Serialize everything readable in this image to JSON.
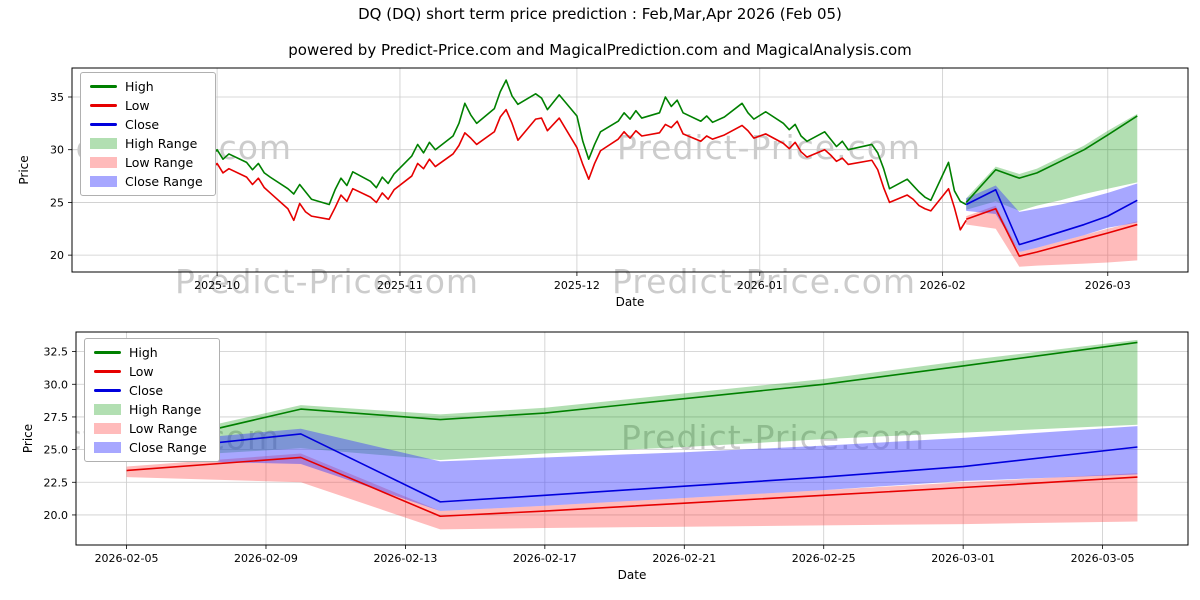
{
  "title": "DQ (DQ) short term price prediction : Feb,Mar,Apr 2026 (Feb 05)",
  "subtitle": "powered by Predict-Price.com and MagicalPrediction.com and MagicalAnalysis.com",
  "watermark": "Predict-Price.com",
  "chart_data": {
    "type": "line",
    "legend": [
      "High",
      "Low",
      "Close",
      "High Range",
      "Low Range",
      "Close Range"
    ],
    "colors": {
      "high": "#008000",
      "low": "#e60000",
      "close": "#0000dd",
      "high_range": "rgba(0,150,0,0.30)",
      "low_range": "rgba(255,60,60,0.35)",
      "close_range": "rgba(60,60,255,0.45)",
      "grid": "#cccccc",
      "axis": "#000000",
      "watermark": "#9a9a9a"
    },
    "figures": [
      {
        "name": "history-with-prediction",
        "xlabel": "Date",
        "ylabel": "Price",
        "ylim": [
          18.4,
          37.75
        ],
        "yticks": [
          20,
          25,
          30,
          35
        ],
        "ytick_labels": [
          "20",
          "25",
          "30",
          "35"
        ],
        "xticks": [
          {
            "date": "2025-10-01",
            "label": "2025-10"
          },
          {
            "date": "2025-11-01",
            "label": "2025-11"
          },
          {
            "date": "2025-12-01",
            "label": "2025-12"
          },
          {
            "date": "2026-01-01",
            "label": "2026-01"
          },
          {
            "date": "2026-02-01",
            "label": "2026-02"
          },
          {
            "date": "2026-03-01",
            "label": "2026-03"
          }
        ],
        "show_history": true
      },
      {
        "name": "prediction-zoom",
        "xlabel": "Date",
        "ylabel": "Price",
        "ylim": [
          17.7,
          34.0
        ],
        "yticks": [
          20.0,
          22.5,
          25.0,
          27.5,
          30.0,
          32.5
        ],
        "ytick_labels": [
          "20.0",
          "22.5",
          "25.0",
          "27.5",
          "30.0",
          "32.5"
        ],
        "xticks": [
          {
            "date": "2026-02-05",
            "label": "2026-02-05"
          },
          {
            "date": "2026-02-09",
            "label": "2026-02-09"
          },
          {
            "date": "2026-02-13",
            "label": "2026-02-13"
          },
          {
            "date": "2026-02-17",
            "label": "2026-02-17"
          },
          {
            "date": "2026-02-21",
            "label": "2026-02-21"
          },
          {
            "date": "2026-02-25",
            "label": "2026-02-25"
          },
          {
            "date": "2026-03-01",
            "label": "2026-03-01"
          },
          {
            "date": "2026-03-05",
            "label": "2026-03-05"
          }
        ],
        "show_history": false
      }
    ],
    "history": {
      "dates": [
        "2025-09-15",
        "2025-09-16",
        "2025-09-17",
        "2025-09-18",
        "2025-09-19",
        "2025-09-22",
        "2025-09-23",
        "2025-09-24",
        "2025-09-25",
        "2025-09-26",
        "2025-09-29",
        "2025-09-30",
        "2025-10-01",
        "2025-10-02",
        "2025-10-03",
        "2025-10-06",
        "2025-10-07",
        "2025-10-08",
        "2025-10-09",
        "2025-10-10",
        "2025-10-13",
        "2025-10-14",
        "2025-10-15",
        "2025-10-16",
        "2025-10-17",
        "2025-10-20",
        "2025-10-21",
        "2025-10-22",
        "2025-10-23",
        "2025-10-24",
        "2025-10-27",
        "2025-10-28",
        "2025-10-29",
        "2025-10-30",
        "2025-10-31",
        "2025-11-03",
        "2025-11-04",
        "2025-11-05",
        "2025-11-06",
        "2025-11-07",
        "2025-11-10",
        "2025-11-11",
        "2025-11-12",
        "2025-11-13",
        "2025-11-14",
        "2025-11-17",
        "2025-11-18",
        "2025-11-19",
        "2025-11-20",
        "2025-11-21",
        "2025-11-24",
        "2025-11-25",
        "2025-11-26",
        "2025-11-28",
        "2025-12-01",
        "2025-12-02",
        "2025-12-03",
        "2025-12-04",
        "2025-12-05",
        "2025-12-08",
        "2025-12-09",
        "2025-12-10",
        "2025-12-11",
        "2025-12-12",
        "2025-12-15",
        "2025-12-16",
        "2025-12-17",
        "2025-12-18",
        "2025-12-19",
        "2025-12-22",
        "2025-12-23",
        "2025-12-24",
        "2025-12-26",
        "2025-12-29",
        "2025-12-30",
        "2025-12-31",
        "2026-01-02",
        "2026-01-05",
        "2026-01-06",
        "2026-01-07",
        "2026-01-08",
        "2026-01-09",
        "2026-01-12",
        "2026-01-13",
        "2026-01-14",
        "2026-01-15",
        "2026-01-16",
        "2026-01-20",
        "2026-01-21",
        "2026-01-22",
        "2026-01-23",
        "2026-01-26",
        "2026-01-27",
        "2026-01-28",
        "2026-01-29",
        "2026-01-30",
        "2026-02-02",
        "2026-02-03",
        "2026-02-04",
        "2026-02-05"
      ],
      "high": [
        30.0,
        30.7,
        30.2,
        30.9,
        30.1,
        30.3,
        31.1,
        30.2,
        30.6,
        29.7,
        30.2,
        29.4,
        30.0,
        29.1,
        29.6,
        28.8,
        28.1,
        28.7,
        27.8,
        27.4,
        26.3,
        25.8,
        26.7,
        26.0,
        25.3,
        24.8,
        26.2,
        27.3,
        26.6,
        27.9,
        27.0,
        26.4,
        27.4,
        26.8,
        27.7,
        29.4,
        30.5,
        29.7,
        30.7,
        30.0,
        31.3,
        32.5,
        34.4,
        33.3,
        32.5,
        33.9,
        35.5,
        36.6,
        35.1,
        34.3,
        35.3,
        34.9,
        33.8,
        35.2,
        33.2,
        30.8,
        29.1,
        30.5,
        31.7,
        32.7,
        33.5,
        32.9,
        33.7,
        33.0,
        33.5,
        35.0,
        34.1,
        34.7,
        33.5,
        32.7,
        33.2,
        32.6,
        33.1,
        34.4,
        33.5,
        32.9,
        33.6,
        32.5,
        31.9,
        32.4,
        31.3,
        30.8,
        31.7,
        31.0,
        30.3,
        30.8,
        30.0,
        30.5,
        29.7,
        28.2,
        26.3,
        27.2,
        26.6,
        26.0,
        25.5,
        25.2,
        28.8,
        26.1,
        25.1,
        24.8
      ],
      "low": [
        28.8,
        29.4,
        29.0,
        29.5,
        28.7,
        29.1,
        29.8,
        28.9,
        29.3,
        28.4,
        28.9,
        28.1,
        28.7,
        27.8,
        28.2,
        27.4,
        26.7,
        27.3,
        26.4,
        25.9,
        24.4,
        23.3,
        24.9,
        24.1,
        23.7,
        23.4,
        24.5,
        25.7,
        25.1,
        26.3,
        25.5,
        25.0,
        25.9,
        25.3,
        26.2,
        27.5,
        28.7,
        28.2,
        29.1,
        28.4,
        29.6,
        30.4,
        31.6,
        31.1,
        30.5,
        31.7,
        33.1,
        33.8,
        32.5,
        30.9,
        32.9,
        33.0,
        31.8,
        33.0,
        30.2,
        28.6,
        27.2,
        28.7,
        29.9,
        31.0,
        31.7,
        31.1,
        31.8,
        31.3,
        31.6,
        32.4,
        32.1,
        32.7,
        31.5,
        30.8,
        31.3,
        31.0,
        31.4,
        32.3,
        31.8,
        31.1,
        31.5,
        30.6,
        30.1,
        30.7,
        29.8,
        29.3,
        30.0,
        29.5,
        28.9,
        29.2,
        28.6,
        29.0,
        28.1,
        26.4,
        25.0,
        25.7,
        25.3,
        24.7,
        24.4,
        24.2,
        26.3,
        24.5,
        22.4,
        23.3
      ]
    },
    "prediction": {
      "dates": [
        "2026-02-05",
        "2026-02-10",
        "2026-02-14",
        "2026-02-17",
        "2026-02-21",
        "2026-02-25",
        "2026-03-01",
        "2026-03-06"
      ],
      "high": [
        25.0,
        28.1,
        27.3,
        27.8,
        28.9,
        30.0,
        31.4,
        33.2
      ],
      "low": [
        23.4,
        24.4,
        19.9,
        20.3,
        20.9,
        21.5,
        22.1,
        22.9
      ],
      "close": [
        24.8,
        26.2,
        21.0,
        21.5,
        22.2,
        22.9,
        23.7,
        25.2
      ],
      "high_band": {
        "upper": [
          25.4,
          28.4,
          27.7,
          28.2,
          29.3,
          30.4,
          31.8,
          33.4
        ],
        "lower": [
          24.3,
          25.1,
          24.2,
          24.7,
          25.2,
          25.8,
          26.3,
          26.9
        ]
      },
      "low_band": {
        "upper": [
          23.7,
          24.7,
          20.3,
          20.7,
          21.3,
          21.9,
          22.5,
          23.2
        ],
        "lower": [
          22.9,
          22.5,
          18.9,
          19.0,
          19.1,
          19.2,
          19.3,
          19.5
        ]
      },
      "close_band": {
        "upper": [
          25.4,
          26.6,
          24.1,
          24.4,
          24.8,
          25.3,
          25.9,
          26.8
        ],
        "lower": [
          24.2,
          23.9,
          20.3,
          20.7,
          21.3,
          21.9,
          22.6,
          23.1
        ]
      }
    }
  }
}
